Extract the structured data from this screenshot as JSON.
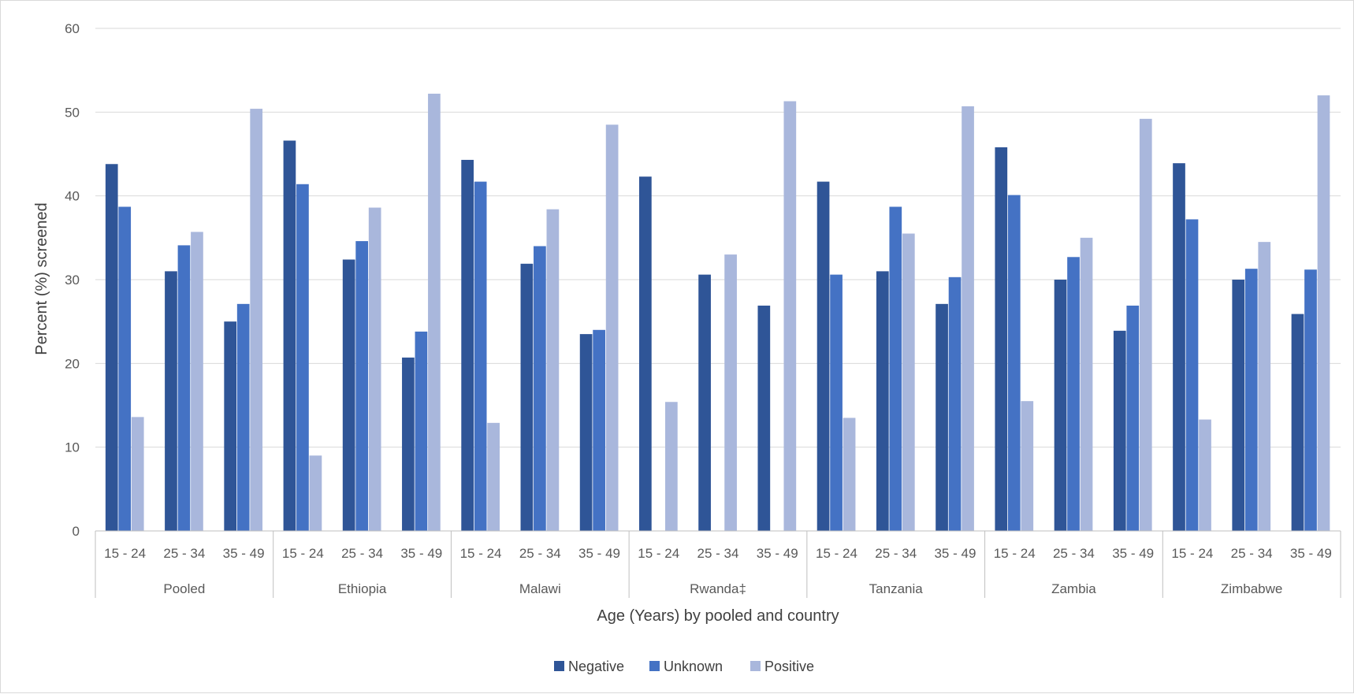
{
  "chart_data": {
    "type": "bar",
    "title": "",
    "xlabel": "Age (Years) by pooled and country",
    "ylabel": "Percent (%) screened",
    "ylim": [
      0,
      60
    ],
    "yticks": [
      0,
      10,
      20,
      30,
      40,
      50,
      60
    ],
    "grid": true,
    "legend_position": "bottom",
    "groups": [
      "Pooled",
      "Ethiopia",
      "Malawi",
      "Rwanda‡",
      "Tanzania",
      "Zambia",
      "Zimbabwe"
    ],
    "subcategories": [
      "15 - 24",
      "25 - 34",
      "35 - 49"
    ],
    "series": [
      {
        "name": "Negative",
        "color": "#2f5597",
        "values": [
          [
            43.8,
            31.0,
            25.0
          ],
          [
            46.6,
            32.4,
            20.7
          ],
          [
            44.3,
            31.9,
            23.5
          ],
          [
            42.3,
            30.6,
            26.9
          ],
          [
            41.7,
            31.0,
            27.1
          ],
          [
            45.8,
            30.0,
            23.9
          ],
          [
            43.9,
            30.0,
            25.9
          ]
        ]
      },
      {
        "name": "Unknown",
        "color": "#4472c4",
        "values": [
          [
            38.7,
            34.1,
            27.1
          ],
          [
            41.4,
            34.6,
            23.8
          ],
          [
            41.7,
            34.0,
            24.0
          ],
          [
            null,
            null,
            null
          ],
          [
            30.6,
            38.7,
            30.3
          ],
          [
            40.1,
            32.7,
            26.9
          ],
          [
            37.2,
            31.3,
            31.2
          ]
        ]
      },
      {
        "name": "Positive",
        "color": "#a9b7dc",
        "values": [
          [
            13.6,
            35.7,
            50.4
          ],
          [
            9.0,
            38.6,
            52.2
          ],
          [
            12.9,
            38.4,
            48.5
          ],
          [
            15.4,
            33.0,
            51.3
          ],
          [
            13.5,
            35.5,
            50.7
          ],
          [
            15.5,
            35.0,
            49.2
          ],
          [
            13.3,
            34.5,
            52.0
          ]
        ]
      }
    ]
  }
}
